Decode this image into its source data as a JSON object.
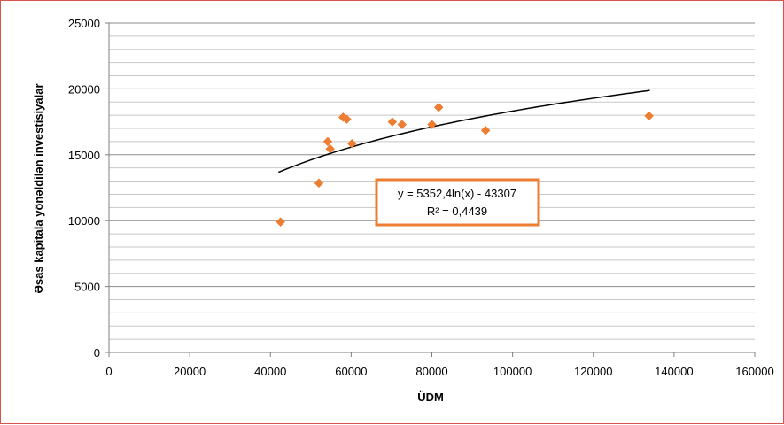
{
  "chart_data": {
    "type": "scatter",
    "xlabel": "ÜDM",
    "ylabel": "Əsas kapitala yönəldilən investisiyalar",
    "xlim": [
      0,
      160000
    ],
    "ylim": [
      0,
      25000
    ],
    "x_ticks": [
      0,
      20000,
      40000,
      60000,
      80000,
      100000,
      120000,
      140000,
      160000
    ],
    "x_tick_labels": [
      "0",
      "20000",
      "40000",
      "60000",
      "80000",
      "100000",
      "120000",
      "140000",
      "160000"
    ],
    "y_ticks": [
      0,
      5000,
      10000,
      15000,
      20000,
      25000
    ],
    "y_tick_labels": [
      "0",
      "5000",
      "10000",
      "15000",
      "20000",
      "25000"
    ],
    "grid": true,
    "marker_color": "#ed7d31",
    "trend_color": "#000000",
    "points": [
      {
        "x": 42500,
        "y": 9900
      },
      {
        "x": 52000,
        "y": 12850
      },
      {
        "x": 54200,
        "y": 16000
      },
      {
        "x": 54800,
        "y": 15450
      },
      {
        "x": 58000,
        "y": 17850
      },
      {
        "x": 58900,
        "y": 17700
      },
      {
        "x": 60200,
        "y": 15850
      },
      {
        "x": 70200,
        "y": 17500
      },
      {
        "x": 72600,
        "y": 17300
      },
      {
        "x": 80000,
        "y": 17300
      },
      {
        "x": 81700,
        "y": 18600
      },
      {
        "x": 93300,
        "y": 16850
      },
      {
        "x": 133800,
        "y": 17950
      }
    ],
    "trendline": {
      "type": "logarithmic",
      "a": 5352.4,
      "b": -43307,
      "x_range": [
        42000,
        134000
      ],
      "equation": "y = 5352,4ln(x) - 43307",
      "r_squared": "R² = 0,4439",
      "box_color": "#ed7d31"
    }
  }
}
